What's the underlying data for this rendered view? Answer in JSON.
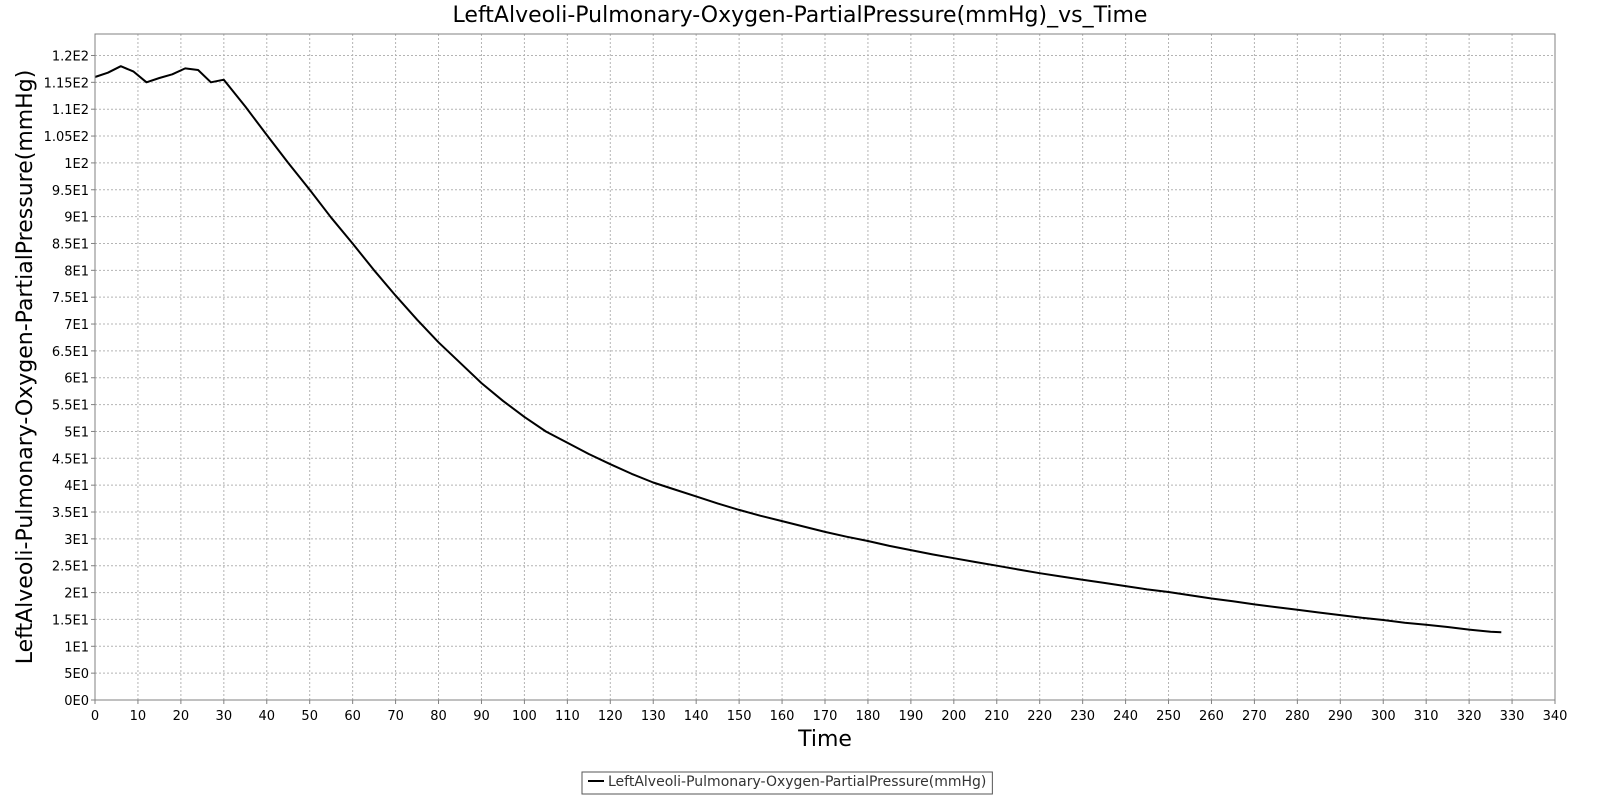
{
  "chart_data": {
    "type": "line",
    "title": "LeftAlveoli-Pulmonary-Oxygen-PartialPressure(mmHg)_vs_Time",
    "xlabel": "Time",
    "ylabel": "LeftAlveoli-Pulmonary-Oxygen-PartialPressure(mmHg)",
    "xlim": [
      0,
      340
    ],
    "ylim": [
      0,
      124
    ],
    "x_ticks": [
      0,
      10,
      20,
      30,
      40,
      50,
      60,
      70,
      80,
      90,
      100,
      110,
      120,
      130,
      140,
      150,
      160,
      170,
      180,
      190,
      200,
      210,
      220,
      230,
      240,
      250,
      260,
      270,
      280,
      290,
      300,
      310,
      320,
      330,
      340
    ],
    "x_tick_labels": [
      "0",
      "10",
      "20",
      "30",
      "40",
      "50",
      "60",
      "70",
      "80",
      "90",
      "100",
      "110",
      "120",
      "130",
      "140",
      "150",
      "160",
      "170",
      "180",
      "190",
      "200",
      "210",
      "220",
      "230",
      "240",
      "250",
      "260",
      "270",
      "280",
      "290",
      "300",
      "310",
      "320",
      "330",
      "340"
    ],
    "y_ticks": [
      0,
      5,
      10,
      15,
      20,
      25,
      30,
      35,
      40,
      45,
      50,
      55,
      60,
      65,
      70,
      75,
      80,
      85,
      90,
      95,
      100,
      105,
      110,
      115,
      120
    ],
    "y_tick_labels": [
      "0E0",
      "5E0",
      "1E1",
      "1.5E1",
      "2E1",
      "2.5E1",
      "3E1",
      "3.5E1",
      "4E1",
      "4.5E1",
      "5E1",
      "5.5E1",
      "6E1",
      "6.5E1",
      "7E1",
      "7.5E1",
      "8E1",
      "8.5E1",
      "9E1",
      "9.5E1",
      "1E2",
      "1.05E2",
      "1.1E2",
      "1.15E2",
      "1.2E2"
    ],
    "grid": true,
    "legend_position": "bottom-center",
    "series": [
      {
        "name": "LeftAlveoli-Pulmonary-Oxygen-PartialPressure(mmHg)",
        "color": "#000000",
        "x": [
          0,
          3,
          6,
          9,
          12,
          15,
          18,
          21,
          24,
          27,
          30,
          35,
          40,
          45,
          50,
          55,
          60,
          65,
          70,
          75,
          80,
          85,
          90,
          95,
          100,
          105,
          110,
          115,
          120,
          125,
          130,
          135,
          140,
          145,
          150,
          155,
          160,
          165,
          170,
          175,
          180,
          185,
          190,
          195,
          200,
          205,
          210,
          215,
          220,
          225,
          230,
          235,
          240,
          245,
          250,
          255,
          260,
          265,
          270,
          275,
          280,
          285,
          290,
          295,
          300,
          305,
          310,
          315,
          320,
          325,
          327.5
        ],
        "y": [
          116,
          116.8,
          118,
          117,
          115,
          115.8,
          116.5,
          117.6,
          117.3,
          115,
          115.5,
          110.5,
          105.2,
          100,
          95,
          89.8,
          85,
          80,
          75.3,
          70.8,
          66.6,
          62.8,
          59,
          55.7,
          52.7,
          50,
          47.9,
          45.8,
          43.9,
          42.1,
          40.5,
          39.2,
          37.9,
          36.6,
          35.4,
          34.3,
          33.3,
          32.3,
          31.3,
          30.4,
          29.6,
          28.7,
          27.9,
          27.1,
          26.4,
          25.7,
          25,
          24.3,
          23.6,
          23,
          22.4,
          21.8,
          21.2,
          20.6,
          20.1,
          19.5,
          18.9,
          18.4,
          17.8,
          17.3,
          16.8,
          16.3,
          15.8,
          15.3,
          14.9,
          14.4,
          14,
          13.6,
          13.1,
          12.7,
          12.6
        ]
      }
    ]
  }
}
